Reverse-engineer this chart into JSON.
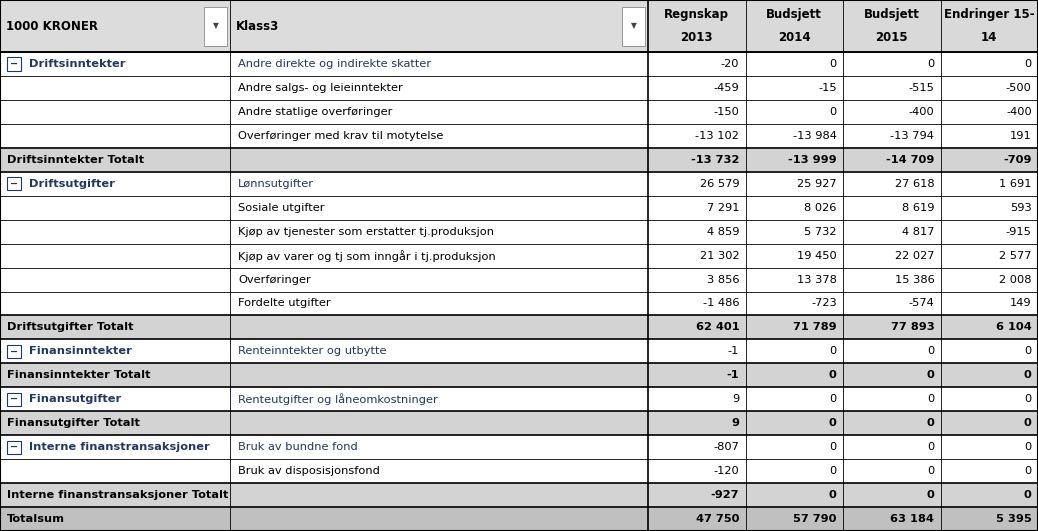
{
  "col_headers": [
    "1000 KRONER",
    "Klass3",
    "Regnskap\n2013",
    "Budsjett\n2014",
    "Budsjett\n2015",
    "Endringer 15-\n14"
  ],
  "rows": [
    {
      "type": "group_header",
      "col0": "Driftsinntekter",
      "col1": "Andre direkte og indirekte skatter",
      "col2": "-20",
      "col3": "0",
      "col4": "0",
      "col5": "0"
    },
    {
      "type": "data",
      "col0": "",
      "col1": "Andre salgs- og leieinntekter",
      "col2": "-459",
      "col3": "-15",
      "col4": "-515",
      "col5": "-500"
    },
    {
      "type": "data",
      "col0": "",
      "col1": "Andre statlige overføringer",
      "col2": "-150",
      "col3": "0",
      "col4": "-400",
      "col5": "-400"
    },
    {
      "type": "data",
      "col0": "",
      "col1": "Overføringer med krav til motytelse",
      "col2": "-13 102",
      "col3": "-13 984",
      "col4": "-13 794",
      "col5": "191"
    },
    {
      "type": "total",
      "col0": "Driftsinntekter Totalt",
      "col1": "",
      "col2": "-13 732",
      "col3": "-13 999",
      "col4": "-14 709",
      "col5": "-709"
    },
    {
      "type": "group_header",
      "col0": "Driftsutgifter",
      "col1": "Lønnsutgifter",
      "col2": "26 579",
      "col3": "25 927",
      "col4": "27 618",
      "col5": "1 691"
    },
    {
      "type": "data",
      "col0": "",
      "col1": "Sosiale utgifter",
      "col2": "7 291",
      "col3": "8 026",
      "col4": "8 619",
      "col5": "593"
    },
    {
      "type": "data",
      "col0": "",
      "col1": "Kjøp av tjenester som erstatter tj.produksjon",
      "col2": "4 859",
      "col3": "5 732",
      "col4": "4 817",
      "col5": "-915"
    },
    {
      "type": "data",
      "col0": "",
      "col1": "Kjøp av varer og tj som inngår i tj.produksjon",
      "col2": "21 302",
      "col3": "19 450",
      "col4": "22 027",
      "col5": "2 577"
    },
    {
      "type": "data",
      "col0": "",
      "col1": "Overføringer",
      "col2": "3 856",
      "col3": "13 378",
      "col4": "15 386",
      "col5": "2 008"
    },
    {
      "type": "data",
      "col0": "",
      "col1": "Fordelte utgifter",
      "col2": "-1 486",
      "col3": "-723",
      "col4": "-574",
      "col5": "149"
    },
    {
      "type": "total",
      "col0": "Driftsutgifter Totalt",
      "col1": "",
      "col2": "62 401",
      "col3": "71 789",
      "col4": "77 893",
      "col5": "6 104"
    },
    {
      "type": "group_header",
      "col0": "Finansinntekter",
      "col1": "Renteinntekter og utbytte",
      "col2": "-1",
      "col3": "0",
      "col4": "0",
      "col5": "0"
    },
    {
      "type": "total",
      "col0": "Finansinntekter Totalt",
      "col1": "",
      "col2": "-1",
      "col3": "0",
      "col4": "0",
      "col5": "0"
    },
    {
      "type": "group_header",
      "col0": "Finansutgifter",
      "col1": "Renteutgifter og låneomkostninger",
      "col2": "9",
      "col3": "0",
      "col4": "0",
      "col5": "0"
    },
    {
      "type": "total",
      "col0": "Finansutgifter Totalt",
      "col1": "",
      "col2": "9",
      "col3": "0",
      "col4": "0",
      "col5": "0"
    },
    {
      "type": "group_header",
      "col0": "Interne finanstransaksjoner",
      "col1": "Bruk av bundne fond",
      "col2": "-807",
      "col3": "0",
      "col4": "0",
      "col5": "0"
    },
    {
      "type": "data",
      "col0": "",
      "col1": "Bruk av disposisjonsfond",
      "col2": "-120",
      "col3": "0",
      "col4": "0",
      "col5": "0"
    },
    {
      "type": "total",
      "col0": "Interne finanstransaksjoner Totalt",
      "col1": "",
      "col2": "-927",
      "col3": "0",
      "col4": "0",
      "col5": "0"
    },
    {
      "type": "grand_total",
      "col0": "Totalsum",
      "col1": "",
      "col2": "47 750",
      "col3": "57 790",
      "col4": "63 184",
      "col5": "5 395"
    }
  ],
  "bg_header_left": "#DCDCDC",
  "bg_header_num": "#D9D9D9",
  "bg_data": "#FFFFFF",
  "bg_total": "#D3D3D3",
  "bg_grand_total": "#C0C0C0",
  "color_group": "#1F3864",
  "color_normal": "#000000",
  "color_bold": "#000000",
  "figsize": [
    10.38,
    5.31
  ],
  "dpi": 100
}
